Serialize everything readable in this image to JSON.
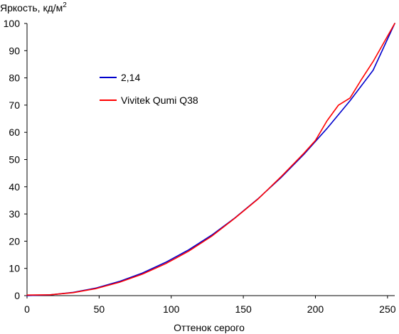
{
  "chart_data": {
    "type": "line",
    "title": "",
    "ylabel": "Яркость, кд/м",
    "ylabel_superscript": "2",
    "xlabel": "Оттенок серого",
    "xlim": [
      0,
      255
    ],
    "ylim": [
      0,
      100
    ],
    "x_ticks": [
      0,
      50,
      100,
      150,
      200,
      250
    ],
    "y_ticks": [
      0,
      10,
      20,
      30,
      40,
      50,
      60,
      70,
      80,
      90,
      100
    ],
    "grid": false,
    "legend_position": "upper-left",
    "series": [
      {
        "name": "2,14",
        "color": "#0000cc",
        "x": [
          0,
          16,
          32,
          48,
          64,
          80,
          96,
          112,
          128,
          144,
          160,
          176,
          192,
          208,
          224,
          240,
          255
        ],
        "y": [
          0,
          0.27,
          1.2,
          2.8,
          5.2,
          8.3,
          12.2,
          16.8,
          22.2,
          28.5,
          35.5,
          43.3,
          51.9,
          61.4,
          71.6,
          82.8,
          100
        ]
      },
      {
        "name": "Vivitek Qumi Q38",
        "color": "#ff0000",
        "x": [
          0,
          16,
          32,
          48,
          64,
          80,
          96,
          112,
          128,
          144,
          160,
          176,
          192,
          200,
          208,
          216,
          224,
          232,
          240,
          255
        ],
        "y": [
          0.2,
          0.3,
          1.1,
          2.6,
          4.9,
          7.9,
          11.7,
          16.3,
          21.8,
          28.4,
          35.4,
          43.6,
          52.3,
          57.0,
          64.2,
          70.0,
          72.6,
          79.5,
          86.0,
          100
        ]
      }
    ]
  }
}
